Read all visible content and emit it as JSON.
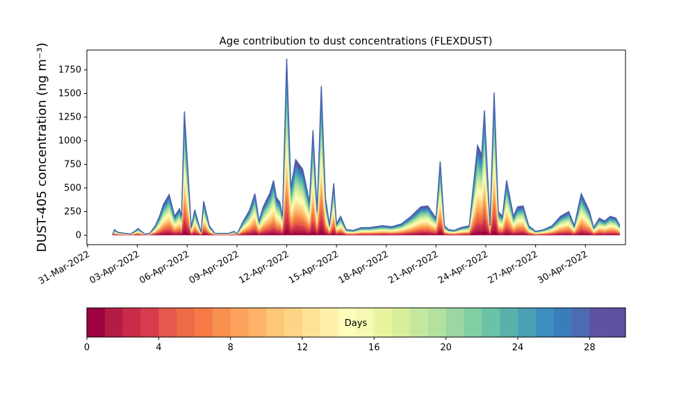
{
  "chart_data": [
    {
      "type": "area",
      "stacked": true,
      "title": "Age contribution to dust concentrations (FLEXDUST)",
      "ylabel": "DUST-405 concentration (ng m⁻³)",
      "xlabel": "",
      "ylim": [
        -100,
        1960
      ],
      "xlim": [
        "2022-03-30T23:00",
        "2022-05-02T10:00"
      ],
      "grid": false,
      "yticks": [
        0,
        250,
        500,
        750,
        1000,
        1250,
        1500,
        1750
      ],
      "xticks": [
        "31-Mar-2022",
        "03-Apr-2022",
        "06-Apr-2022",
        "09-Apr-2022",
        "12-Apr-2022",
        "15-Apr-2022",
        "18-Apr-2022",
        "21-Apr-2022",
        "24-Apr-2022",
        "27-Apr-2022",
        "30-Apr-2022"
      ],
      "x": [
        "2022-04-01T12:00",
        "2022-04-01T15:00",
        "2022-04-01T20:00",
        "2022-04-02T06:00",
        "2022-04-02T14:00",
        "2022-04-02T18:00",
        "2022-04-03T01:00",
        "2022-04-03T11:00",
        "2022-04-03T18:00",
        "2022-04-04T02:00",
        "2022-04-04T08:00",
        "2022-04-04T14:00",
        "2022-04-04T22:00",
        "2022-04-05T06:00",
        "2022-04-05T13:00",
        "2022-04-05T16:00",
        "2022-04-05T20:00",
        "2022-04-06T06:00",
        "2022-04-06T11:00",
        "2022-04-06T20:00",
        "2022-04-07T00:00",
        "2022-04-07T08:00",
        "2022-04-07T16:00",
        "2022-04-08T00:00",
        "2022-04-08T12:00",
        "2022-04-08T20:00",
        "2022-04-09T00:00",
        "2022-04-09T10:00",
        "2022-04-09T18:00",
        "2022-04-10T02:00",
        "2022-04-10T08:00",
        "2022-04-10T14:00",
        "2022-04-11T00:00",
        "2022-04-11T05:00",
        "2022-04-11T09:00",
        "2022-04-11T14:00",
        "2022-04-11T18:00",
        "2022-04-12T00:00",
        "2022-04-12T06:00",
        "2022-04-12T13:00",
        "2022-04-12T23:00",
        "2022-04-13T02:00",
        "2022-04-13T09:00",
        "2022-04-13T14:00",
        "2022-04-13T20:00",
        "2022-04-14T02:00",
        "2022-04-14T08:00",
        "2022-04-14T14:00",
        "2022-04-14T20:00",
        "2022-04-15T00:00",
        "2022-04-15T06:00",
        "2022-04-15T14:00",
        "2022-04-16T00:00",
        "2022-04-16T12:00",
        "2022-04-17T00:00",
        "2022-04-17T18:00",
        "2022-04-18T08:00",
        "2022-04-18T22:00",
        "2022-04-19T12:00",
        "2022-04-20T02:00",
        "2022-04-20T12:00",
        "2022-04-21T00:00",
        "2022-04-21T06:00",
        "2022-04-21T12:00",
        "2022-04-21T18:00",
        "2022-04-22T02:00",
        "2022-04-22T12:00",
        "2022-04-23T00:00",
        "2022-04-23T12:00",
        "2022-04-23T18:00",
        "2022-04-23T22:00",
        "2022-04-24T06:00",
        "2022-04-24T12:00",
        "2022-04-24T18:00",
        "2022-04-25T00:00",
        "2022-04-25T06:00",
        "2022-04-25T16:00",
        "2022-04-25T22:00",
        "2022-04-26T06:00",
        "2022-04-26T14:00",
        "2022-04-27T00:00",
        "2022-04-27T12:00",
        "2022-04-28T00:00",
        "2022-04-28T12:00",
        "2022-04-29T00:00",
        "2022-04-29T08:00",
        "2022-04-29T18:00",
        "2022-04-30T06:00",
        "2022-04-30T12:00",
        "2022-04-30T20:00",
        "2022-05-01T04:00",
        "2022-05-01T12:00",
        "2022-05-01T20:00",
        "2022-05-02T02:00"
      ],
      "total": [
        0,
        60,
        30,
        20,
        10,
        30,
        70,
        10,
        20,
        100,
        200,
        330,
        430,
        200,
        280,
        200,
        1310,
        80,
        270,
        30,
        360,
        100,
        20,
        20,
        20,
        40,
        10,
        160,
        260,
        440,
        150,
        300,
        450,
        580,
        400,
        350,
        200,
        1870,
        500,
        800,
        700,
        600,
        350,
        1110,
        250,
        1580,
        400,
        100,
        550,
        120,
        200,
        60,
        50,
        80,
        80,
        100,
        90,
        120,
        200,
        300,
        310,
        180,
        780,
        100,
        60,
        50,
        80,
        100,
        950,
        850,
        1320,
        100,
        1510,
        250,
        200,
        580,
        200,
        300,
        310,
        100,
        40,
        60,
        100,
        200,
        250,
        100,
        440,
        250,
        80,
        180,
        150,
        200,
        180,
        100
      ],
      "colorbar": {
        "label": "Days",
        "range": [
          0,
          30
        ],
        "levels": 30,
        "ticks": [
          0,
          4,
          8,
          12,
          16,
          20,
          24,
          28
        ],
        "colormap": "Spectral",
        "colors": [
          "#9e0142",
          "#b31c45",
          "#c92c49",
          "#d73c4c",
          "#e55a4c",
          "#ed6c46",
          "#f57a45",
          "#f8904e",
          "#fba35c",
          "#fdb466",
          "#fec778",
          "#fed586",
          "#fee396",
          "#fff0a9",
          "#fefdbb",
          "#f4fab1",
          "#e8f59e",
          "#d7ef9b",
          "#c5e8a0",
          "#b2e1a0",
          "#9bd6a3",
          "#82cea4",
          "#6bc3a5",
          "#58b2aa",
          "#4aa0b2",
          "#3b8ebd",
          "#3b7cba",
          "#4e6ab0",
          "#5e52a3",
          "#5e4fa2"
        ]
      }
    }
  ]
}
